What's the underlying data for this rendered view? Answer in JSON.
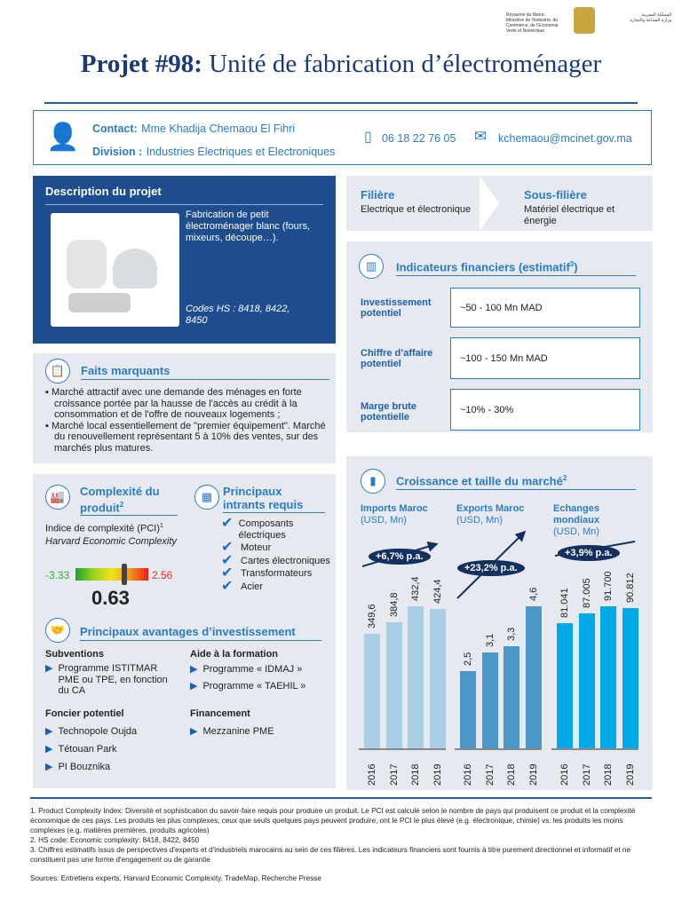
{
  "logo": {
    "text_fr": "Royaume du Maroc — Ministère de l'Industrie, du Commerce, de l'Economie Verte et Numérique",
    "text_ar": "المملكة المغربية وزارة الصناعة والتجارة والاقتصاد الأخضر والرقمي"
  },
  "title": {
    "prefix": "Projet #98:",
    "rest": " Unité de fabrication d’électroménager"
  },
  "contact": {
    "contact_label": "Contact:",
    "contact_name": "Mme Khadija Chemaou El Fihri",
    "division_label": "Division :",
    "division": "Industries Electriques et Electroniques",
    "phone": "06 18 22 76 05",
    "email": "kchemaou@mcinet.gov.ma"
  },
  "description": {
    "title": "Description du projet",
    "text": "Fabrication de petit électroménager blanc (fours, mixeurs, découpe…).",
    "codes": "Codes HS : 8418, 8422, 8450"
  },
  "filiere": {
    "label": "Filière",
    "value": "Electrique et électronique",
    "sub_label": "Sous-filière",
    "sub_value": "Matériel électrique et énergie"
  },
  "indicateurs": {
    "title": "Indicateurs financiers (estimatif",
    "sup": "3",
    ")": ")",
    "close": ")",
    "items": [
      {
        "label": "Investissement potentiel",
        "value": "~50 - 100 Mn MAD"
      },
      {
        "label": "Chiffre d’affaire potentiel",
        "value": "~100 - 150 Mn MAD"
      },
      {
        "label": "Marge brute potentielle",
        "value": "~10% - 30%"
      }
    ]
  },
  "faits": {
    "title": "Faits marquants",
    "items": [
      "Marché attractif avec une demande des ménages en forte croissance portée par la hausse de l'accès au crédit à la consommation et de l'offre de nouveaux logements ;",
      "Marché local essentiellement de \"premier équipement\". Marché du renouvellement représentant 5 à 10% des ventes, sur des marchés plus matures."
    ]
  },
  "complexite": {
    "title": "Complexité du produit",
    "sup": "2",
    "index_label": "Indice de complexité (PCI)",
    "index_sup": "1",
    "source": "Harvard Economic Complexity",
    "min": "-3.33",
    "max": "2.56",
    "value": "0.63",
    "value_num": 0.63
  },
  "intrants": {
    "title": "Principaux intrants requis",
    "items": [
      "Composants électriques",
      "Moteur",
      "Cartes électroniques",
      "Transformateurs",
      "Acier"
    ]
  },
  "avantages": {
    "title": "Principaux avantages d’investissement",
    "subventions_label": "Subventions",
    "subventions": [
      "Programme ISTITMAR PME ou TPE, en fonction du CA"
    ],
    "formation_label": "Aide à la formation",
    "formation": [
      "Programme « IDMAJ »",
      "Programme « TAEHIL »"
    ],
    "foncier_label": "Foncier potentiel",
    "foncier": [
      "Technopole Oujda",
      "Tétouan Park",
      "PI Bouznika"
    ],
    "financement_label": "Financement",
    "financement": [
      "Mezzanine PME"
    ]
  },
  "chart_data": {
    "type": "bar",
    "title": "Croissance et taille du marché",
    "title_sup": "2",
    "categories": [
      "2016",
      "2017",
      "2018",
      "2019"
    ],
    "panels": [
      {
        "name": "Imports Maroc",
        "unit": "(USD, Mn)",
        "values": [
          349.6,
          384.8,
          432.4,
          424.4
        ],
        "labels": [
          "349,6",
          "384,8",
          "432,4",
          "424,4"
        ],
        "cagr": "+6,7% p.a.",
        "color": "#a9cfe4"
      },
      {
        "name": "Exports Maroc",
        "unit": "(USD, Mn)",
        "values": [
          2.5,
          3.1,
          3.3,
          4.6
        ],
        "labels": [
          "2,5",
          "3,1",
          "3,3",
          "4,6"
        ],
        "cagr": "+23,2% p.a.",
        "color": "#4b98c8"
      },
      {
        "name": "Echanges mondiaux",
        "unit": "(USD, Mn)",
        "values": [
          81.041,
          87.005,
          91.7,
          90.812
        ],
        "labels": [
          "81.041",
          "87.005",
          "91.700",
          "90.812"
        ],
        "cagr": "+3,9% p.a.",
        "color": "#00a9e8"
      }
    ]
  },
  "footnotes": [
    "1. Product Complexity Index: Diversité et sophistication du savoir-faire requis pour produire un produit. Le PCI est calculé selon le nombre de pays qui produisent ce produit et la complexité économique de ces pays. Les produits les plus complexes, ceux que seuls quelques pays peuvent produire, ont le PCI le plus élevé (e.g. électronique, chimie) vs. les produits les moins complexes (e.g. matières premières, produits agricoles)",
    "2. HS code: Economic complexity: 8418, 8422, 8450",
    "3. Chiffres estimatifs issus de perspectives d'experts et d'industriels marocains au sein de ces filières. Les indicateurs financiers sont fournis à titre purement directionnel et informatif et ne constituent pas une forme d'engagement ou de garantie"
  ],
  "sources": "Sources: Entretiens experts, Harvard Economic Complexity, TradeMap, Recherche Presse"
}
